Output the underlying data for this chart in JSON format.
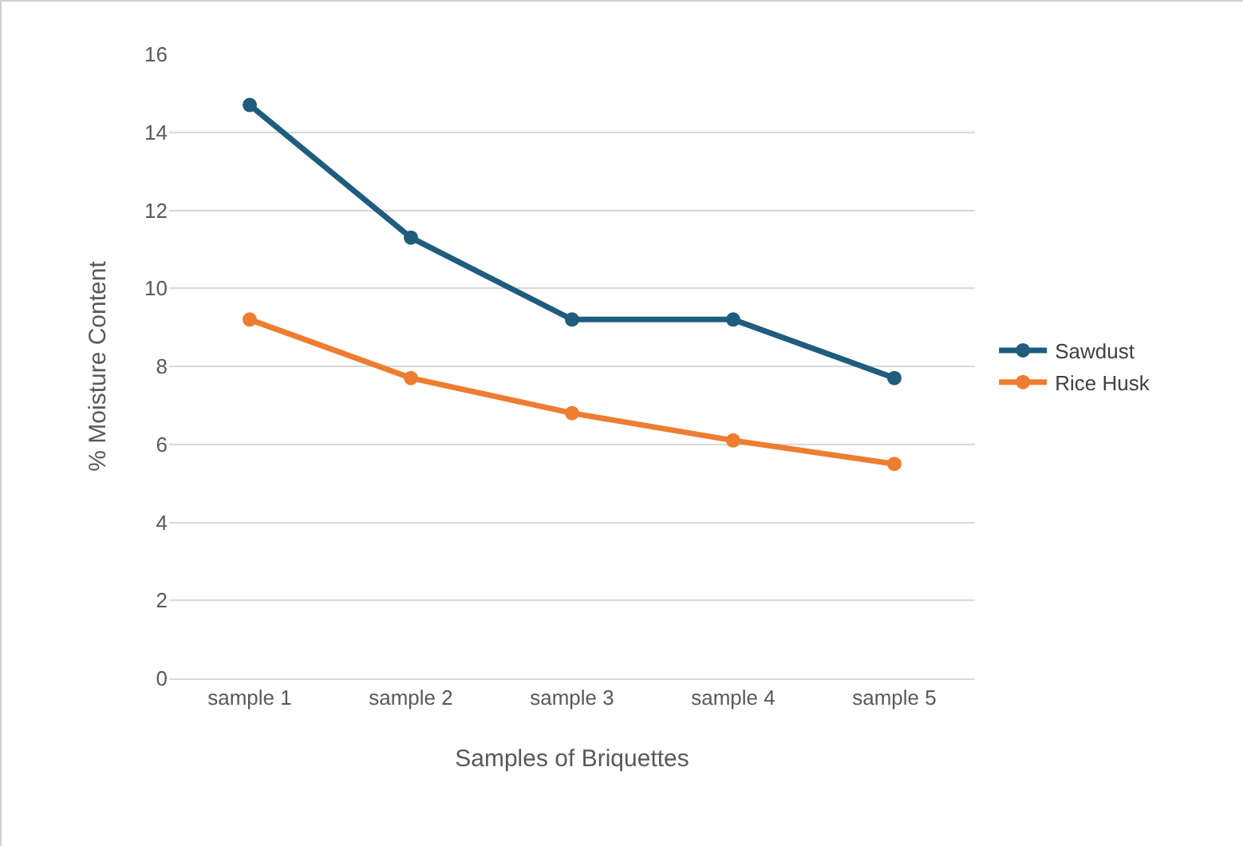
{
  "chart_data": {
    "type": "line",
    "xlabel": "Samples of Briquettes",
    "ylabel": "% Moisture Content",
    "categories": [
      "sample 1",
      "sample 2",
      "sample 3",
      "sample 4",
      "sample 5"
    ],
    "series": [
      {
        "name": "Sawdust",
        "color": "#1f5c7d",
        "values": [
          14.7,
          11.3,
          9.2,
          9.2,
          7.7
        ]
      },
      {
        "name": "Rice Husk",
        "color": "#ed7d31",
        "values": [
          9.2,
          7.7,
          6.8,
          6.1,
          5.5
        ]
      }
    ],
    "ylim": [
      0,
      16
    ],
    "yticks": [
      0,
      2,
      4,
      6,
      8,
      10,
      12,
      14,
      16
    ],
    "grid": "y",
    "legend": "right",
    "marker": "circle",
    "line_style": "solid"
  }
}
